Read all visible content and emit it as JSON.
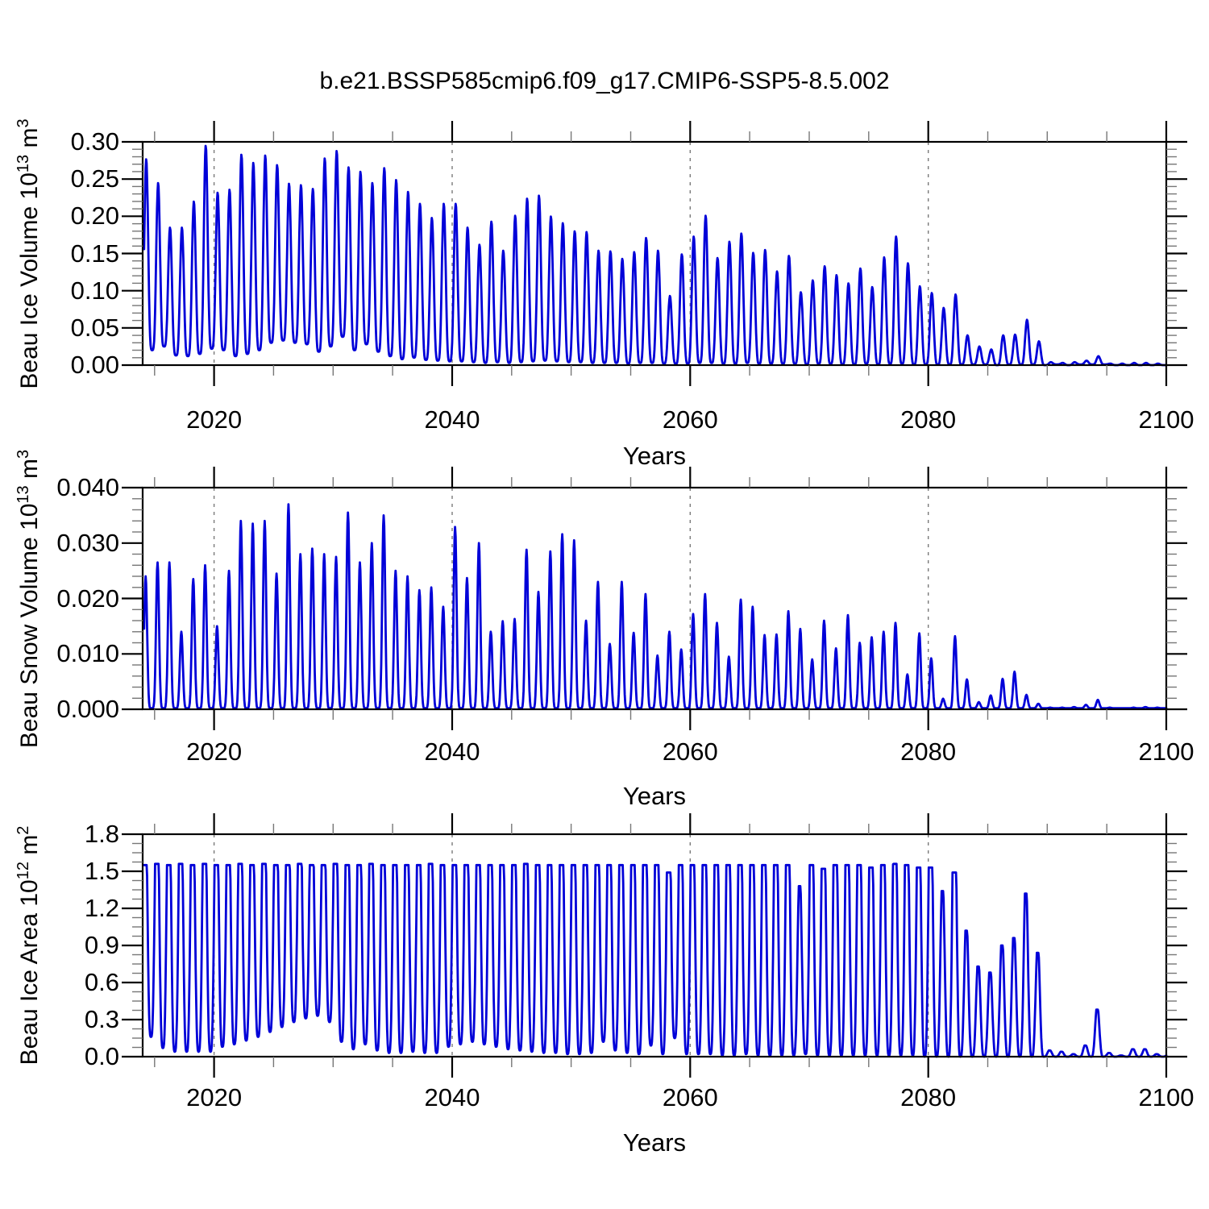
{
  "figure": {
    "title": "b.e21.BSSP585cmip6.f09_g17.CMIP6-SSP5-8.5.002",
    "background": "#ffffff"
  },
  "style": {
    "line_color": "#0000d8",
    "axis_color": "#000000",
    "minor_tick_color": "#777777",
    "grid_color": "#7a7a7a"
  },
  "chart_data": [
    {
      "id": "beau-ice-volume",
      "type": "line",
      "ylabel": "Beau Ice Volume 10^13 m^3",
      "ylabel_parts": [
        {
          "t": "Beau Ice Volume 10"
        },
        {
          "t": "13",
          "sup": true
        },
        {
          "t": " m"
        },
        {
          "t": "3",
          "sup": true
        }
      ],
      "xlabel": "Years",
      "xlim": [
        2014,
        2100
      ],
      "ylim": [
        0,
        0.3
      ],
      "x_major_ticks": [
        2020,
        2040,
        2060,
        2080,
        2100
      ],
      "x_tick_labels": [
        "2020",
        "2040",
        "2060",
        "2080",
        "2100"
      ],
      "x_minor_step": 5,
      "grid_x": [
        2020,
        2040,
        2060,
        2080
      ],
      "y_major_ticks": [
        0.0,
        0.05,
        0.1,
        0.15,
        0.2,
        0.25,
        0.3
      ],
      "y_tick_labels": [
        "0.00",
        "0.05",
        "0.10",
        "0.15",
        "0.20",
        "0.25",
        "0.30"
      ],
      "y_minor_step": 0.01,
      "legend": "none",
      "grid": "vertical-dashed",
      "seasonal": {
        "mode": "peak",
        "points_per_year": 24,
        "peak_phase": 0.3,
        "power": 2.0
      },
      "years": [
        2014,
        2015,
        2016,
        2017,
        2018,
        2019,
        2020,
        2021,
        2022,
        2023,
        2024,
        2025,
        2026,
        2027,
        2028,
        2029,
        2030,
        2031,
        2032,
        2033,
        2034,
        2035,
        2036,
        2037,
        2038,
        2039,
        2040,
        2041,
        2042,
        2043,
        2044,
        2045,
        2046,
        2047,
        2048,
        2049,
        2050,
        2051,
        2052,
        2053,
        2054,
        2055,
        2056,
        2057,
        2058,
        2059,
        2060,
        2061,
        2062,
        2063,
        2064,
        2065,
        2066,
        2067,
        2068,
        2069,
        2070,
        2071,
        2072,
        2073,
        2074,
        2075,
        2076,
        2077,
        2078,
        2079,
        2080,
        2081,
        2082,
        2083,
        2084,
        2085,
        2086,
        2087,
        2088,
        2089,
        2090,
        2091,
        2092,
        2093,
        2094,
        2095,
        2096,
        2097,
        2098,
        2099
      ],
      "annual_max": [
        0.277,
        0.245,
        0.185,
        0.185,
        0.22,
        0.295,
        0.232,
        0.236,
        0.283,
        0.272,
        0.282,
        0.269,
        0.244,
        0.242,
        0.237,
        0.278,
        0.288,
        0.266,
        0.26,
        0.245,
        0.265,
        0.249,
        0.233,
        0.217,
        0.198,
        0.217,
        0.217,
        0.185,
        0.162,
        0.193,
        0.154,
        0.201,
        0.224,
        0.228,
        0.2,
        0.191,
        0.18,
        0.179,
        0.154,
        0.153,
        0.143,
        0.152,
        0.171,
        0.154,
        0.093,
        0.149,
        0.173,
        0.201,
        0.144,
        0.166,
        0.177,
        0.151,
        0.155,
        0.126,
        0.147,
        0.098,
        0.114,
        0.133,
        0.121,
        0.11,
        0.13,
        0.105,
        0.145,
        0.173,
        0.137,
        0.106,
        0.097,
        0.077,
        0.095,
        0.04,
        0.025,
        0.021,
        0.04,
        0.041,
        0.061,
        0.032,
        0.004,
        0.003,
        0.004,
        0.006,
        0.012,
        0.002,
        0.002,
        0.003,
        0.003,
        0.002
      ],
      "annual_min": [
        0.02,
        0.025,
        0.013,
        0.012,
        0.015,
        0.022,
        0.02,
        0.012,
        0.015,
        0.02,
        0.03,
        0.033,
        0.03,
        0.028,
        0.018,
        0.025,
        0.038,
        0.02,
        0.028,
        0.018,
        0.012,
        0.008,
        0.01,
        0.007,
        0.006,
        0.005,
        0.005,
        0.004,
        0.003,
        0.004,
        0.003,
        0.004,
        0.005,
        0.006,
        0.005,
        0.004,
        0.004,
        0.003,
        0.003,
        0.003,
        0.002,
        0.003,
        0.003,
        0.002,
        0.002,
        0.002,
        0.003,
        0.003,
        0.002,
        0.002,
        0.003,
        0.002,
        0.002,
        0.002,
        0.002,
        0.001,
        0.002,
        0.002,
        0.001,
        0.001,
        0.002,
        0.001,
        0.002,
        0.002,
        0.001,
        0.001,
        0.001,
        0.001,
        0.001,
        0.001,
        0.001,
        0.0,
        0.001,
        0.001,
        0.001,
        0.0,
        0.001,
        0.0,
        0.001,
        0.001,
        0.001,
        0.0,
        0.0,
        0.0,
        0.0,
        0.0
      ]
    },
    {
      "id": "beau-snow-volume",
      "type": "line",
      "ylabel": "Beau Snow Volume 10^13 m^3",
      "ylabel_parts": [
        {
          "t": "Beau Snow Volume 10"
        },
        {
          "t": "13",
          "sup": true
        },
        {
          "t": " m"
        },
        {
          "t": "3",
          "sup": true
        }
      ],
      "xlabel": "Years",
      "xlim": [
        2014,
        2100
      ],
      "ylim": [
        0,
        0.04
      ],
      "x_major_ticks": [
        2020,
        2040,
        2060,
        2080,
        2100
      ],
      "x_tick_labels": [
        "2020",
        "2040",
        "2060",
        "2080",
        "2100"
      ],
      "x_minor_step": 5,
      "grid_x": [
        2020,
        2040,
        2060,
        2080
      ],
      "y_major_ticks": [
        0.0,
        0.01,
        0.02,
        0.03,
        0.04
      ],
      "y_tick_labels": [
        "0.000",
        "0.010",
        "0.020",
        "0.030",
        "0.040"
      ],
      "y_minor_step": 0.002,
      "legend": "none",
      "grid": "vertical-dashed",
      "seasonal": {
        "mode": "peak",
        "points_per_year": 24,
        "peak_phase": 0.25,
        "power": 3.2
      },
      "years": [
        2014,
        2015,
        2016,
        2017,
        2018,
        2019,
        2020,
        2021,
        2022,
        2023,
        2024,
        2025,
        2026,
        2027,
        2028,
        2029,
        2030,
        2031,
        2032,
        2033,
        2034,
        2035,
        2036,
        2037,
        2038,
        2039,
        2040,
        2041,
        2042,
        2043,
        2044,
        2045,
        2046,
        2047,
        2048,
        2049,
        2050,
        2051,
        2052,
        2053,
        2054,
        2055,
        2056,
        2057,
        2058,
        2059,
        2060,
        2061,
        2062,
        2063,
        2064,
        2065,
        2066,
        2067,
        2068,
        2069,
        2070,
        2071,
        2072,
        2073,
        2074,
        2075,
        2076,
        2077,
        2078,
        2079,
        2080,
        2081,
        2082,
        2083,
        2084,
        2085,
        2086,
        2087,
        2088,
        2089,
        2090,
        2091,
        2092,
        2093,
        2094,
        2095,
        2096,
        2097,
        2098,
        2099
      ],
      "annual_max": [
        0.024,
        0.0265,
        0.0265,
        0.014,
        0.0235,
        0.026,
        0.015,
        0.025,
        0.034,
        0.0335,
        0.034,
        0.0245,
        0.037,
        0.028,
        0.029,
        0.028,
        0.0275,
        0.0355,
        0.0265,
        0.03,
        0.035,
        0.025,
        0.024,
        0.0215,
        0.022,
        0.0185,
        0.0329,
        0.0237,
        0.03,
        0.014,
        0.0159,
        0.0163,
        0.0288,
        0.0212,
        0.0285,
        0.0316,
        0.0305,
        0.016,
        0.023,
        0.0118,
        0.023,
        0.0138,
        0.0208,
        0.0097,
        0.014,
        0.0108,
        0.0172,
        0.0208,
        0.0156,
        0.0095,
        0.0198,
        0.0185,
        0.0134,
        0.0135,
        0.0177,
        0.0145,
        0.009,
        0.016,
        0.011,
        0.017,
        0.012,
        0.013,
        0.014,
        0.0156,
        0.0063,
        0.0137,
        0.0092,
        0.0019,
        0.0132,
        0.0054,
        0.0013,
        0.0025,
        0.0055,
        0.0068,
        0.0026,
        0.001,
        0.0003,
        0.0003,
        0.0004,
        0.0008,
        0.0017,
        0.0003,
        0.0002,
        0.0003,
        0.0004,
        0.0003
      ],
      "annual_min": [
        0.0002,
        0.0002,
        0.0002,
        0.0002,
        0.0002,
        0.0002,
        0.0002,
        0.0002,
        0.0002,
        0.0002,
        0.0002,
        0.0002,
        0.0002,
        0.0002,
        0.0002,
        0.0002,
        0.0002,
        0.0002,
        0.0002,
        0.0002,
        0.0002,
        0.0002,
        0.0002,
        0.0002,
        0.0002,
        0.0002,
        0.0002,
        0.0002,
        0.0002,
        0.0002,
        0.0002,
        0.0002,
        0.0002,
        0.0002,
        0.0002,
        0.0002,
        0.0002,
        0.0002,
        0.0002,
        0.0002,
        0.0002,
        0.0002,
        0.0002,
        0.0002,
        0.0002,
        0.0002,
        0.0002,
        0.0002,
        0.0002,
        0.0002,
        0.0002,
        0.0002,
        0.0002,
        0.0002,
        0.0002,
        0.0002,
        0.0002,
        0.0002,
        0.0002,
        0.0002,
        0.0002,
        0.0002,
        0.0002,
        0.0002,
        0.0002,
        0.0002,
        0.0002,
        0.0002,
        0.0002,
        0.0002,
        0.0002,
        0.0002,
        0.0002,
        0.0002,
        0.0002,
        0.0002,
        0.0002,
        0.0002,
        0.0002,
        0.0002,
        0.0002,
        0.0002,
        0.0002,
        0.0002,
        0.0002,
        0.0002
      ]
    },
    {
      "id": "beau-ice-area",
      "type": "line",
      "ylabel": "Beau Ice Area 10^12 m^2",
      "ylabel_parts": [
        {
          "t": "Beau Ice Area 10"
        },
        {
          "t": "12",
          "sup": true
        },
        {
          "t": " m"
        },
        {
          "t": "2",
          "sup": true
        }
      ],
      "xlabel": "Years",
      "xlim": [
        2014,
        2100
      ],
      "ylim": [
        0,
        1.8
      ],
      "x_major_ticks": [
        2020,
        2040,
        2060,
        2080,
        2100
      ],
      "x_tick_labels": [
        "2020",
        "2040",
        "2060",
        "2080",
        "2100"
      ],
      "x_minor_step": 5,
      "grid_x": [
        2020,
        2040,
        2060,
        2080
      ],
      "y_major_ticks": [
        0.0,
        0.3,
        0.6,
        0.9,
        1.2,
        1.5,
        1.8
      ],
      "y_tick_labels": [
        "0.0",
        "0.3",
        "0.6",
        "0.9",
        "1.2",
        "1.5",
        "1.8"
      ],
      "y_minor_step": 0.075,
      "legend": "none",
      "grid": "vertical-dashed",
      "seasonal": {
        "mode": "clipped-peak",
        "points_per_year": 24,
        "peak_phase": 0.2,
        "valley_phase": 0.7,
        "power": 1.7,
        "saturation_level": 1.45,
        "saturation_boost": 0.85
      },
      "years": [
        2014,
        2015,
        2016,
        2017,
        2018,
        2019,
        2020,
        2021,
        2022,
        2023,
        2024,
        2025,
        2026,
        2027,
        2028,
        2029,
        2030,
        2031,
        2032,
        2033,
        2034,
        2035,
        2036,
        2037,
        2038,
        2039,
        2040,
        2041,
        2042,
        2043,
        2044,
        2045,
        2046,
        2047,
        2048,
        2049,
        2050,
        2051,
        2052,
        2053,
        2054,
        2055,
        2056,
        2057,
        2058,
        2059,
        2060,
        2061,
        2062,
        2063,
        2064,
        2065,
        2066,
        2067,
        2068,
        2069,
        2070,
        2071,
        2072,
        2073,
        2074,
        2075,
        2076,
        2077,
        2078,
        2079,
        2080,
        2081,
        2082,
        2083,
        2084,
        2085,
        2086,
        2087,
        2088,
        2089,
        2090,
        2091,
        2092,
        2093,
        2094,
        2095,
        2096,
        2097,
        2098,
        2099
      ],
      "annual_max": [
        1.55,
        1.56,
        1.55,
        1.56,
        1.55,
        1.56,
        1.55,
        1.55,
        1.56,
        1.55,
        1.56,
        1.55,
        1.55,
        1.56,
        1.55,
        1.55,
        1.56,
        1.55,
        1.55,
        1.56,
        1.55,
        1.55,
        1.55,
        1.55,
        1.56,
        1.55,
        1.55,
        1.55,
        1.55,
        1.55,
        1.55,
        1.55,
        1.56,
        1.55,
        1.55,
        1.55,
        1.55,
        1.55,
        1.55,
        1.55,
        1.55,
        1.55,
        1.55,
        1.55,
        1.49,
        1.55,
        1.55,
        1.55,
        1.55,
        1.55,
        1.55,
        1.55,
        1.55,
        1.55,
        1.55,
        1.38,
        1.55,
        1.52,
        1.55,
        1.55,
        1.55,
        1.53,
        1.55,
        1.56,
        1.55,
        1.53,
        1.53,
        1.34,
        1.49,
        1.02,
        0.73,
        0.68,
        0.9,
        0.96,
        1.32,
        0.84,
        0.05,
        0.04,
        0.02,
        0.09,
        0.38,
        0.03,
        0.01,
        0.06,
        0.06,
        0.02
      ],
      "annual_min": [
        0.16,
        0.07,
        0.04,
        0.04,
        0.04,
        0.04,
        0.08,
        0.1,
        0.13,
        0.16,
        0.2,
        0.24,
        0.28,
        0.31,
        0.33,
        0.28,
        0.12,
        0.06,
        0.1,
        0.05,
        0.03,
        0.03,
        0.04,
        0.03,
        0.03,
        0.08,
        0.1,
        0.12,
        0.1,
        0.08,
        0.06,
        0.05,
        0.04,
        0.03,
        0.03,
        0.02,
        0.02,
        0.03,
        0.12,
        0.05,
        0.03,
        0.02,
        0.09,
        0.02,
        0.15,
        0.02,
        0.02,
        0.02,
        0.01,
        0.01,
        0.02,
        0.01,
        0.01,
        0.01,
        0.01,
        0.02,
        0.01,
        0.01,
        0.01,
        0.01,
        0.01,
        0.01,
        0.01,
        0.01,
        0.01,
        0.0,
        0.0,
        0.0,
        0.0,
        0.0,
        0.0,
        0.0,
        0.0,
        0.0,
        0.0,
        0.0,
        0.0,
        0.0,
        0.0,
        0.0,
        0.0,
        0.0,
        0.0,
        0.0,
        0.0,
        0.0
      ]
    }
  ]
}
